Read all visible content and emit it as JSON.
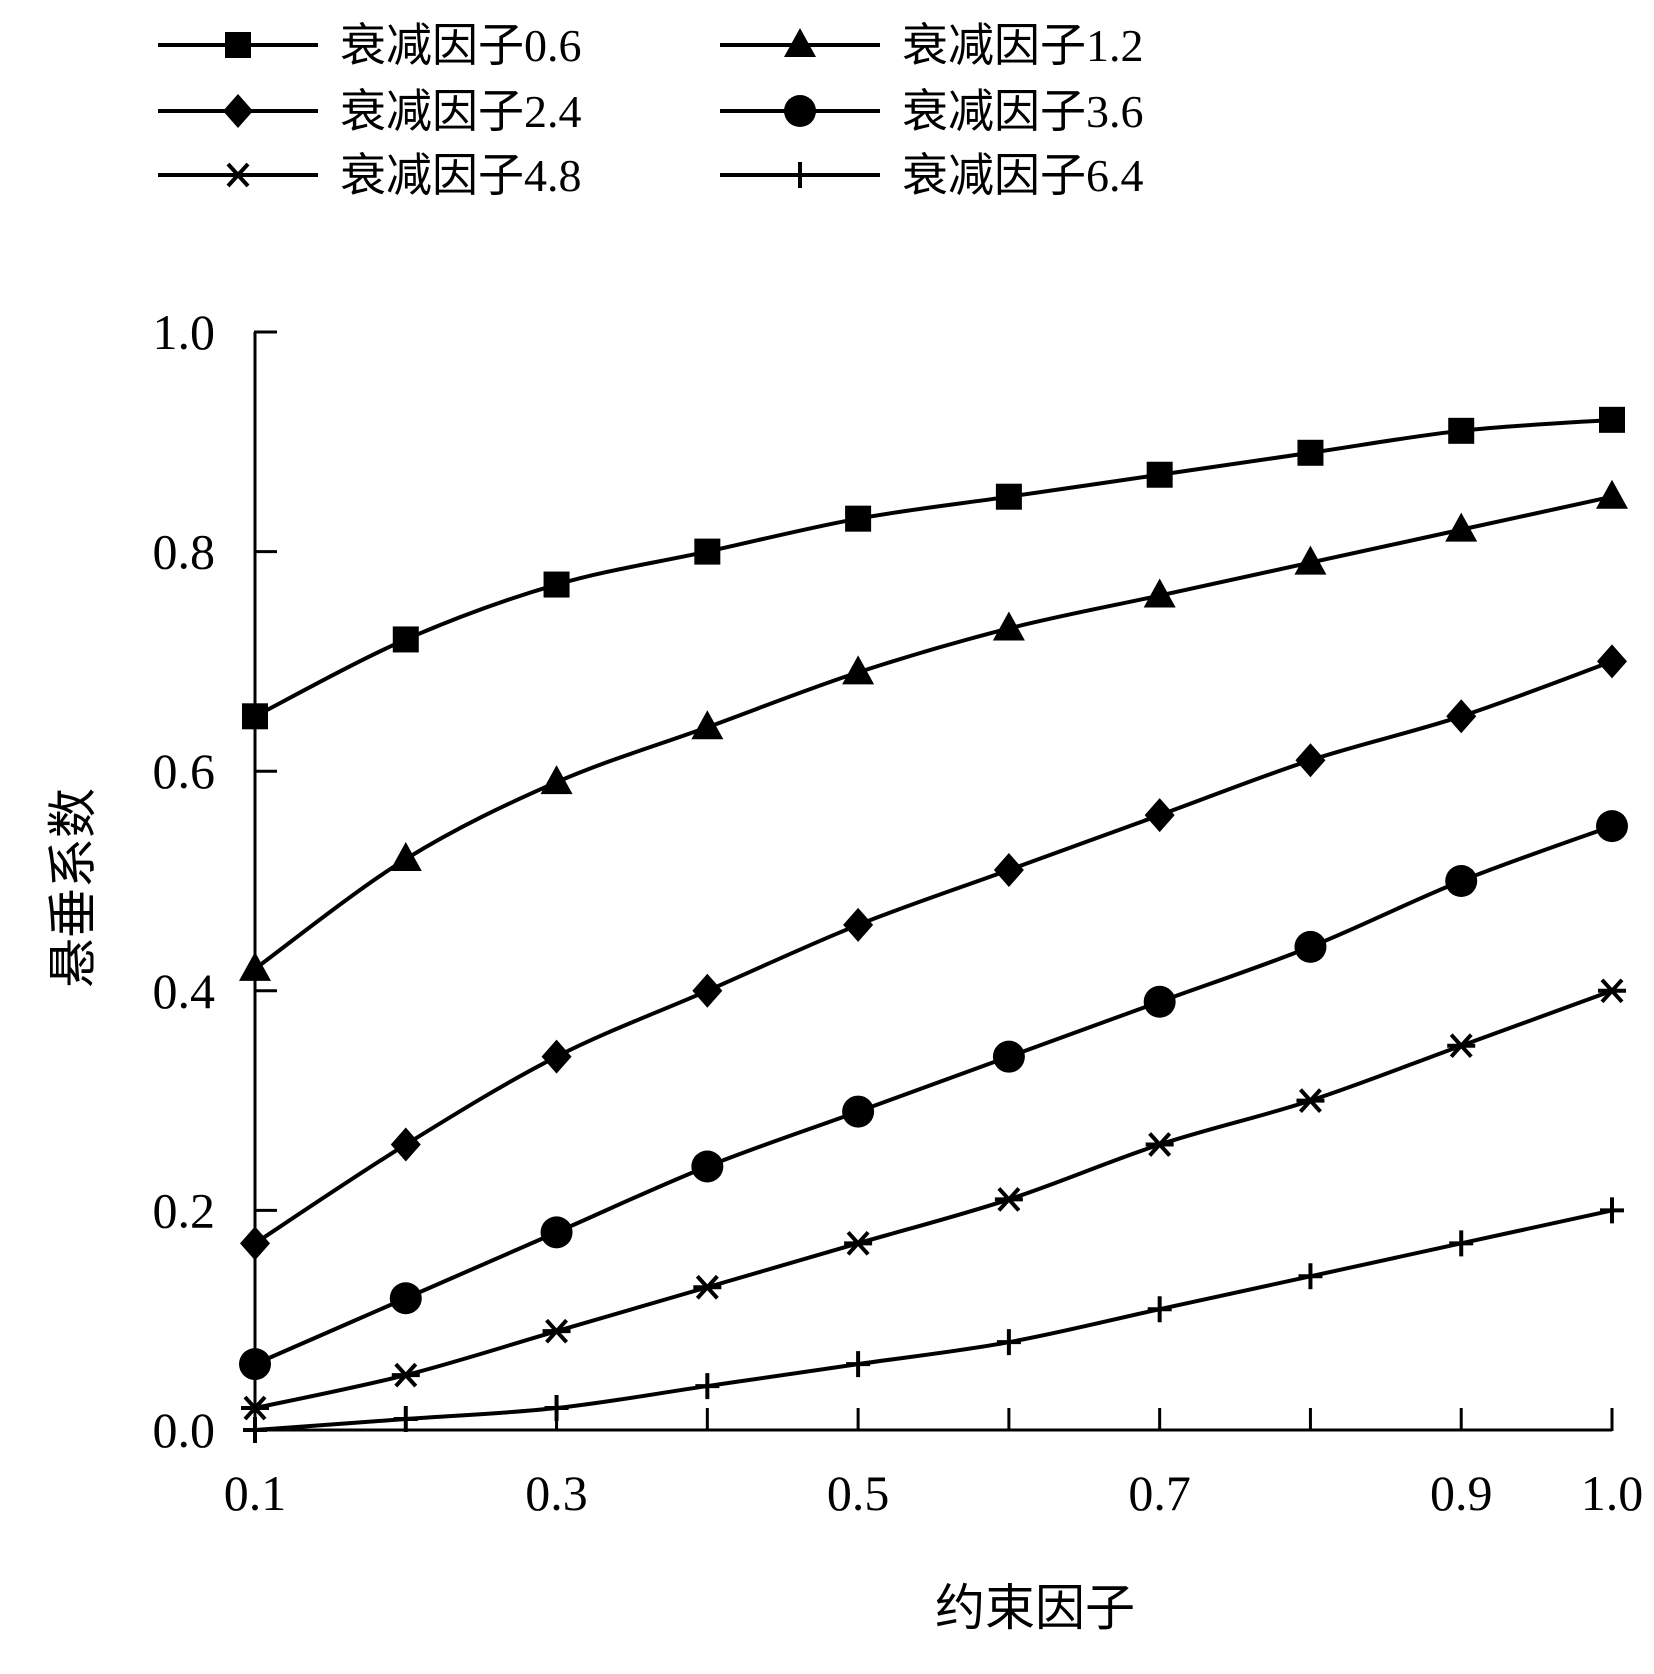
{
  "chart_data": {
    "type": "line",
    "title": "",
    "xlabel": "约束因子",
    "ylabel": "悬垂系数",
    "xlim": [
      0.1,
      1.0
    ],
    "ylim": [
      0.0,
      1.0
    ],
    "xticks": [
      "0.1",
      "0.3",
      "0.5",
      "0.7",
      "0.9",
      "1.0"
    ],
    "xtick_values": [
      0.1,
      0.3,
      0.5,
      0.7,
      0.9,
      1.0
    ],
    "yticks": [
      "0.0",
      "0.2",
      "0.4",
      "0.6",
      "0.8",
      "1.0"
    ],
    "ytick_values": [
      0.0,
      0.2,
      0.4,
      0.6,
      0.8,
      1.0
    ],
    "grid": false,
    "legend_position": "top",
    "x": [
      0.1,
      0.2,
      0.3,
      0.4,
      0.5,
      0.6,
      0.7,
      0.8,
      0.9,
      1.0
    ],
    "series": [
      {
        "name": "衰减因子0.6",
        "marker": "square",
        "values": [
          0.65,
          0.72,
          0.77,
          0.8,
          0.83,
          0.85,
          0.87,
          0.89,
          0.91,
          0.92
        ]
      },
      {
        "name": "衰减因子1.2",
        "marker": "triangle",
        "values": [
          0.42,
          0.52,
          0.59,
          0.64,
          0.69,
          0.73,
          0.76,
          0.79,
          0.82,
          0.85
        ]
      },
      {
        "name": "衰减因子2.4",
        "marker": "diamond",
        "values": [
          0.17,
          0.26,
          0.34,
          0.4,
          0.46,
          0.51,
          0.56,
          0.61,
          0.65,
          0.7
        ]
      },
      {
        "name": "衰减因子3.6",
        "marker": "circle",
        "values": [
          0.06,
          0.12,
          0.18,
          0.24,
          0.29,
          0.34,
          0.39,
          0.44,
          0.5,
          0.55
        ]
      },
      {
        "name": "衰减因子4.8",
        "marker": "asterisk",
        "values": [
          0.02,
          0.05,
          0.09,
          0.13,
          0.17,
          0.21,
          0.26,
          0.3,
          0.35,
          0.4
        ]
      },
      {
        "name": "衰减因子6.4",
        "marker": "plus",
        "values": [
          0.0,
          0.01,
          0.02,
          0.04,
          0.06,
          0.08,
          0.11,
          0.14,
          0.17,
          0.2
        ]
      }
    ],
    "colors": {
      "line": "#000000",
      "background": "#ffffff"
    }
  }
}
